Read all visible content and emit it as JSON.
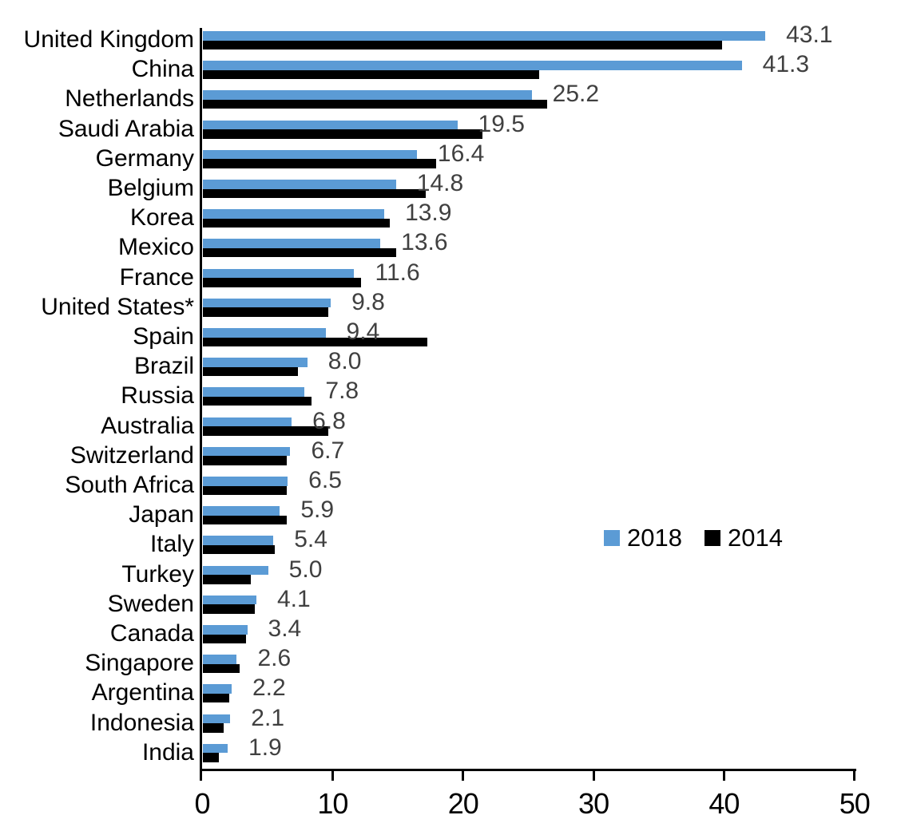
{
  "chart_data": {
    "type": "bar",
    "orientation": "horizontal",
    "title": "",
    "xlabel": "",
    "ylabel": "",
    "xlim": [
      0,
      50
    ],
    "x_ticks": [
      "0",
      "10",
      "20",
      "30",
      "40",
      "50"
    ],
    "grid": false,
    "background": "#FFFFFF",
    "axis_color": "#000000",
    "value_label_color": "#404040",
    "categories": [
      "United Kingdom",
      "China",
      "Netherlands",
      "Saudi Arabia",
      "Germany",
      "Belgium",
      "Korea",
      "Mexico",
      "France",
      "United States*",
      "Spain",
      "Brazil",
      "Russia",
      "Australia",
      "Switzerland",
      "South Africa",
      "Japan",
      "Italy",
      "Turkey",
      "Sweden",
      "Canada",
      "Singapore",
      "Argentina",
      "Indonesia",
      "India"
    ],
    "series": [
      {
        "name": "2018",
        "color": "#5B9BD5",
        "values": [
          43.1,
          41.3,
          25.2,
          19.5,
          16.4,
          14.8,
          13.9,
          13.6,
          11.6,
          9.8,
          9.4,
          8.0,
          7.8,
          6.8,
          6.7,
          6.5,
          5.9,
          5.4,
          5.0,
          4.1,
          3.4,
          2.6,
          2.2,
          2.1,
          1.9
        ],
        "data_labels": [
          "43.1",
          "41.3",
          "25.2",
          "19.5",
          "16.4",
          "14.8",
          "13.9",
          "13.6",
          "11.6",
          "9.8",
          "9.4",
          "8.0",
          "7.8",
          "6.8",
          "6.7",
          "6.5",
          "5.9",
          "5.4",
          "5.0",
          "4.1",
          "3.4",
          "2.6",
          "2.2",
          "2.1",
          "1.9"
        ]
      },
      {
        "name": "2014",
        "color": "#000000",
        "values": [
          39.8,
          25.8,
          26.4,
          21.4,
          17.9,
          17.1,
          14.3,
          14.8,
          12.1,
          9.6,
          17.2,
          7.3,
          8.3,
          9.6,
          6.4,
          6.4,
          6.4,
          5.5,
          3.7,
          4.0,
          3.3,
          2.8,
          2.0,
          1.6,
          1.2
        ]
      }
    ],
    "legend": {
      "position": "middle-right",
      "entries": [
        "2018",
        "2014"
      ]
    }
  }
}
